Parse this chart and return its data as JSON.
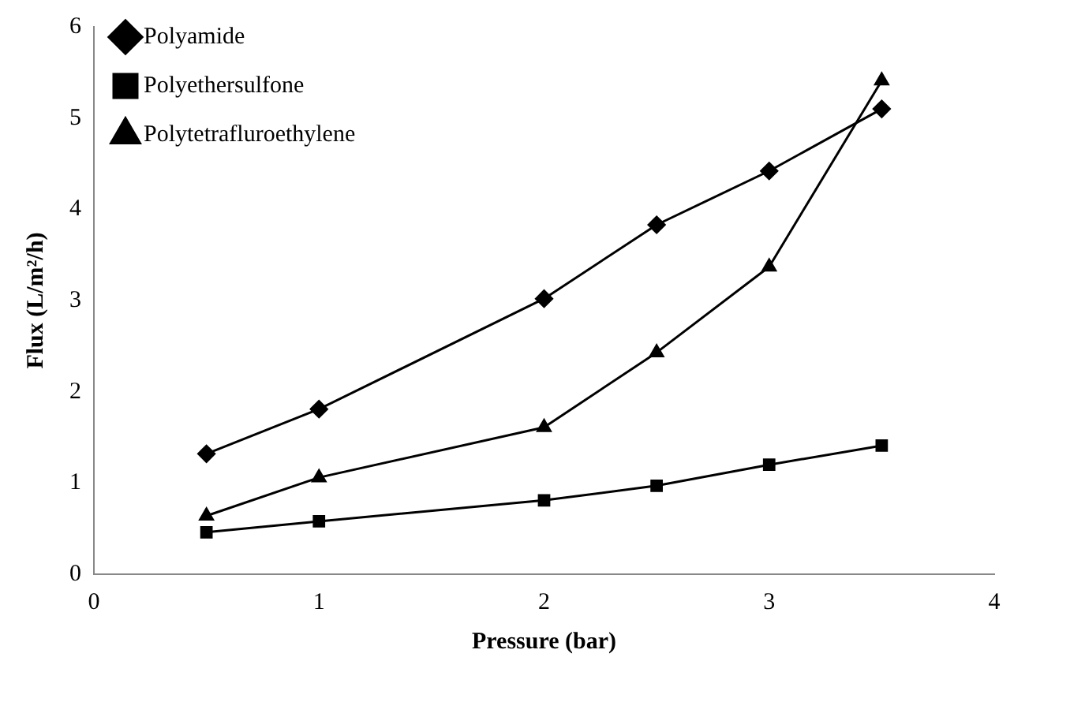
{
  "chart_data": {
    "type": "line",
    "xlabel": "Pressure (bar)",
    "ylabel": "Flux (L/m²/h)",
    "x": [
      0.5,
      1,
      2,
      2.5,
      3,
      3.5
    ],
    "series": [
      {
        "name": "Polyamide",
        "color": "#000000",
        "marker": "diamond",
        "values": [
          1.32,
          1.81,
          3.02,
          3.83,
          4.42,
          5.1
        ]
      },
      {
        "name": "Polyethersulfone",
        "color": "#000000",
        "marker": "square",
        "values": [
          0.46,
          0.58,
          0.81,
          0.97,
          1.2,
          1.41
        ]
      },
      {
        "name": "Polytetrafluroethylene",
        "color": "#000000",
        "marker": "triangle",
        "values": [
          0.64,
          1.06,
          1.61,
          2.43,
          3.37,
          5.41
        ]
      }
    ],
    "xlim": [
      0,
      4
    ],
    "xticks": [
      0,
      1,
      2,
      3,
      4
    ],
    "ylim": [
      0,
      6
    ],
    "yticks": [
      0,
      1,
      2,
      3,
      4,
      5,
      6
    ],
    "grid": false,
    "legend": "top left"
  }
}
